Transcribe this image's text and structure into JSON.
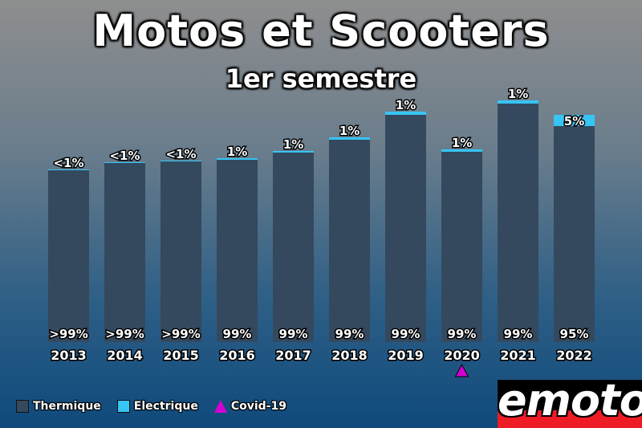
{
  "chart_data": {
    "type": "bar",
    "title": "Motos et Scooters",
    "subtitle": "1er semestre",
    "categories": [
      "2013",
      "2014",
      "2015",
      "2016",
      "2017",
      "2018",
      "2019",
      "2020",
      "2021",
      "2022"
    ],
    "series": [
      {
        "name": "Thermique",
        "color": "#34495e",
        "values": [
          214,
          223,
          225,
          227,
          236,
          252,
          283,
          237,
          297,
          269
        ],
        "labels": [
          ">99%",
          ">99%",
          ">99%",
          "99%",
          "99%",
          "99%",
          "99%",
          "99%",
          "99%",
          "95%"
        ]
      },
      {
        "name": "Electrique",
        "color": "#36c5f4",
        "values": [
          1,
          1,
          1,
          2,
          2,
          3,
          4,
          3,
          4,
          14
        ],
        "labels": [
          "<1%",
          "<1%",
          "<1%",
          "1%",
          "1%",
          "1%",
          "1%",
          "1%",
          "1%",
          "5%"
        ]
      }
    ],
    "ylim": [
      0,
      310
    ],
    "annotations": [
      {
        "category": "2020",
        "marker": "triangle",
        "label": "Covid-19",
        "color": "#d400d4"
      }
    ],
    "legend": {
      "placement": "bottom-left",
      "items": [
        {
          "label": "Thermique",
          "color": "#34495e",
          "shape": "square"
        },
        {
          "label": "Electrique",
          "color": "#36c5f4",
          "shape": "square"
        },
        {
          "label": "Covid-19",
          "color": "#d400d4",
          "shape": "triangle"
        }
      ]
    },
    "grid": false
  },
  "logo": {
    "text": "emoto",
    "color": "#ee1c25"
  }
}
